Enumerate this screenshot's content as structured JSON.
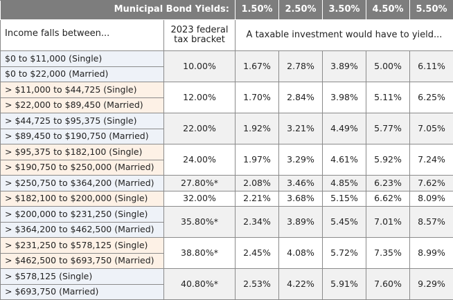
{
  "yield_header": {
    "label": "Municipal Bond Yields:",
    "yields": [
      "1.50%",
      "2.50%",
      "3.50%",
      "4.50%",
      "5.50%"
    ]
  },
  "column_headers": {
    "income": "Income falls between...",
    "bracket_line1": "2023 federal",
    "bracket_line2": "tax bracket",
    "taxable": "A taxable investment would have to yield..."
  },
  "groups": [
    {
      "incomes": [
        "$0 to $11,000 (Single)",
        "$0 to  $22,000 (Married)"
      ],
      "bracket": "10.00%",
      "yields": [
        "1.67%",
        "2.78%",
        "3.89%",
        "5.00%",
        "6.11%"
      ]
    },
    {
      "incomes": [
        "> $11,000 to $44,725 (Single)",
        "> $22,000 to $89,450 (Married)"
      ],
      "bracket": "12.00%",
      "yields": [
        "1.70%",
        "2.84%",
        "3.98%",
        "5.11%",
        "6.25%"
      ]
    },
    {
      "incomes": [
        "> $44,725 to $95,375 (Single)",
        "> $89,450 to $190,750 (Married)"
      ],
      "bracket": "22.00%",
      "yields": [
        "1.92%",
        "3.21%",
        "4.49%",
        "5.77%",
        "7.05%"
      ]
    },
    {
      "incomes": [
        "> $95,375 to $182,100 (Single)",
        "> $190,750 to $250,000 (Married)"
      ],
      "bracket": "24.00%",
      "yields": [
        "1.97%",
        "3.29%",
        "4.61%",
        "5.92%",
        "7.24%"
      ]
    },
    {
      "incomes": [
        "> $250,750 to $364,200 (Married)"
      ],
      "bracket": "27.80%*",
      "yields": [
        "2.08%",
        "3.46%",
        "4.85%",
        "6.23%",
        "7.62%"
      ]
    },
    {
      "incomes": [
        "> $182,100 to $200,000 (Single)"
      ],
      "bracket": "32.00%",
      "yields": [
        "2.21%",
        "3.68%",
        "5.15%",
        "6.62%",
        "8.09%"
      ]
    },
    {
      "incomes": [
        "> $200,000 to $231,250 (Single)",
        "> $364,200 to $462,500 (Married)"
      ],
      "bracket": "35.80%*",
      "yields": [
        "2.34%",
        "3.89%",
        "5.45%",
        "7.01%",
        "8.57%"
      ]
    },
    {
      "incomes": [
        "> $231,250 to $578,125 (Single)",
        "> $462,500 to $693,750 (Married)"
      ],
      "bracket": "38.80%*",
      "yields": [
        "2.45%",
        "4.08%",
        "5.72%",
        "7.35%",
        "8.99%"
      ]
    },
    {
      "incomes": [
        "> $578,125 (Single)",
        "> $693,750 (Married)"
      ],
      "bracket": "40.80%*",
      "yields": [
        "2.53%",
        "4.22%",
        "5.91%",
        "7.60%",
        "9.29%"
      ]
    }
  ]
}
